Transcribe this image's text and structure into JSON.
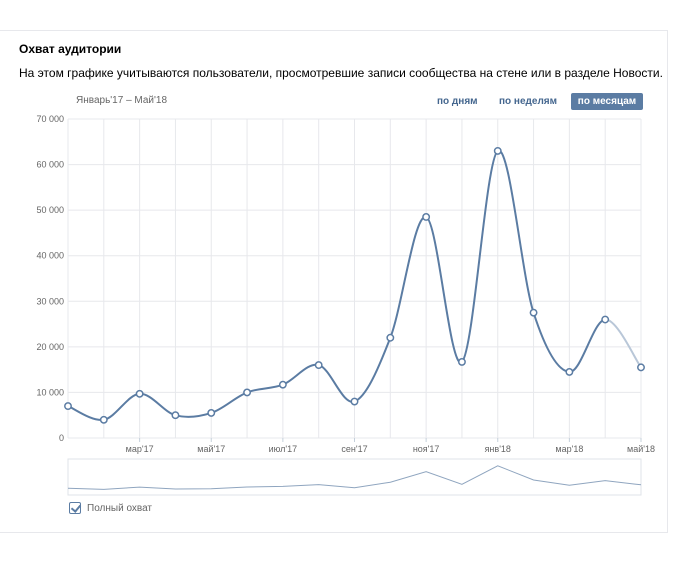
{
  "header": {
    "title": "Охват аудитории",
    "description": "На этом графике учитываются пользователи, просмотревшие записи сообщества на стене или в разделе Новости."
  },
  "period_label": "Январь'17 – Май'18",
  "range_buttons": [
    {
      "label": "по дням",
      "active": false
    },
    {
      "label": "по неделям",
      "active": false
    },
    {
      "label": "по месяцам",
      "active": true
    }
  ],
  "legend": {
    "label": "Полный охват",
    "checked": true
  },
  "colors": {
    "line": "#5b7ca3",
    "line_partial": "#b9c7d8",
    "grid": "#e7e8ec",
    "axis_text": "#656565",
    "accent": "#5b7ca3"
  },
  "chart_data": {
    "type": "line",
    "title": "",
    "xlabel": "",
    "ylabel": "",
    "ylim": [
      0,
      70000
    ],
    "y_ticks": [
      0,
      10000,
      20000,
      30000,
      40000,
      50000,
      60000,
      70000
    ],
    "y_tick_labels": [
      "0",
      "10 000",
      "20 000",
      "30 000",
      "40 000",
      "50 000",
      "60 000",
      "70 000"
    ],
    "x": [
      "2017-01",
      "2017-02",
      "2017-03",
      "2017-04",
      "2017-05",
      "2017-06",
      "2017-07",
      "2017-08",
      "2017-09",
      "2017-10",
      "2017-11",
      "2017-12",
      "2018-01",
      "2018-02",
      "2018-03",
      "2018-04",
      "2018-05"
    ],
    "x_tick_labels": [
      {
        "x": "2017-03",
        "label": "мар'17"
      },
      {
        "x": "2017-05",
        "label": "май'17"
      },
      {
        "x": "2017-07",
        "label": "июл'17"
      },
      {
        "x": "2017-09",
        "label": "сен'17"
      },
      {
        "x": "2017-11",
        "label": "ноя'17"
      },
      {
        "x": "2018-01",
        "label": "янв'18"
      },
      {
        "x": "2018-03",
        "label": "мар'18"
      },
      {
        "x": "2018-05",
        "label": "май'18"
      }
    ],
    "series": [
      {
        "values": [
          7000,
          4000,
          9700,
          5000,
          5500,
          10000,
          11700,
          16000,
          8000,
          22000,
          48500,
          16700,
          63000,
          27500,
          14500,
          26000,
          15500
        ]
      }
    ],
    "grid": true,
    "legend_position": "bottom-left",
    "navigator": true
  }
}
